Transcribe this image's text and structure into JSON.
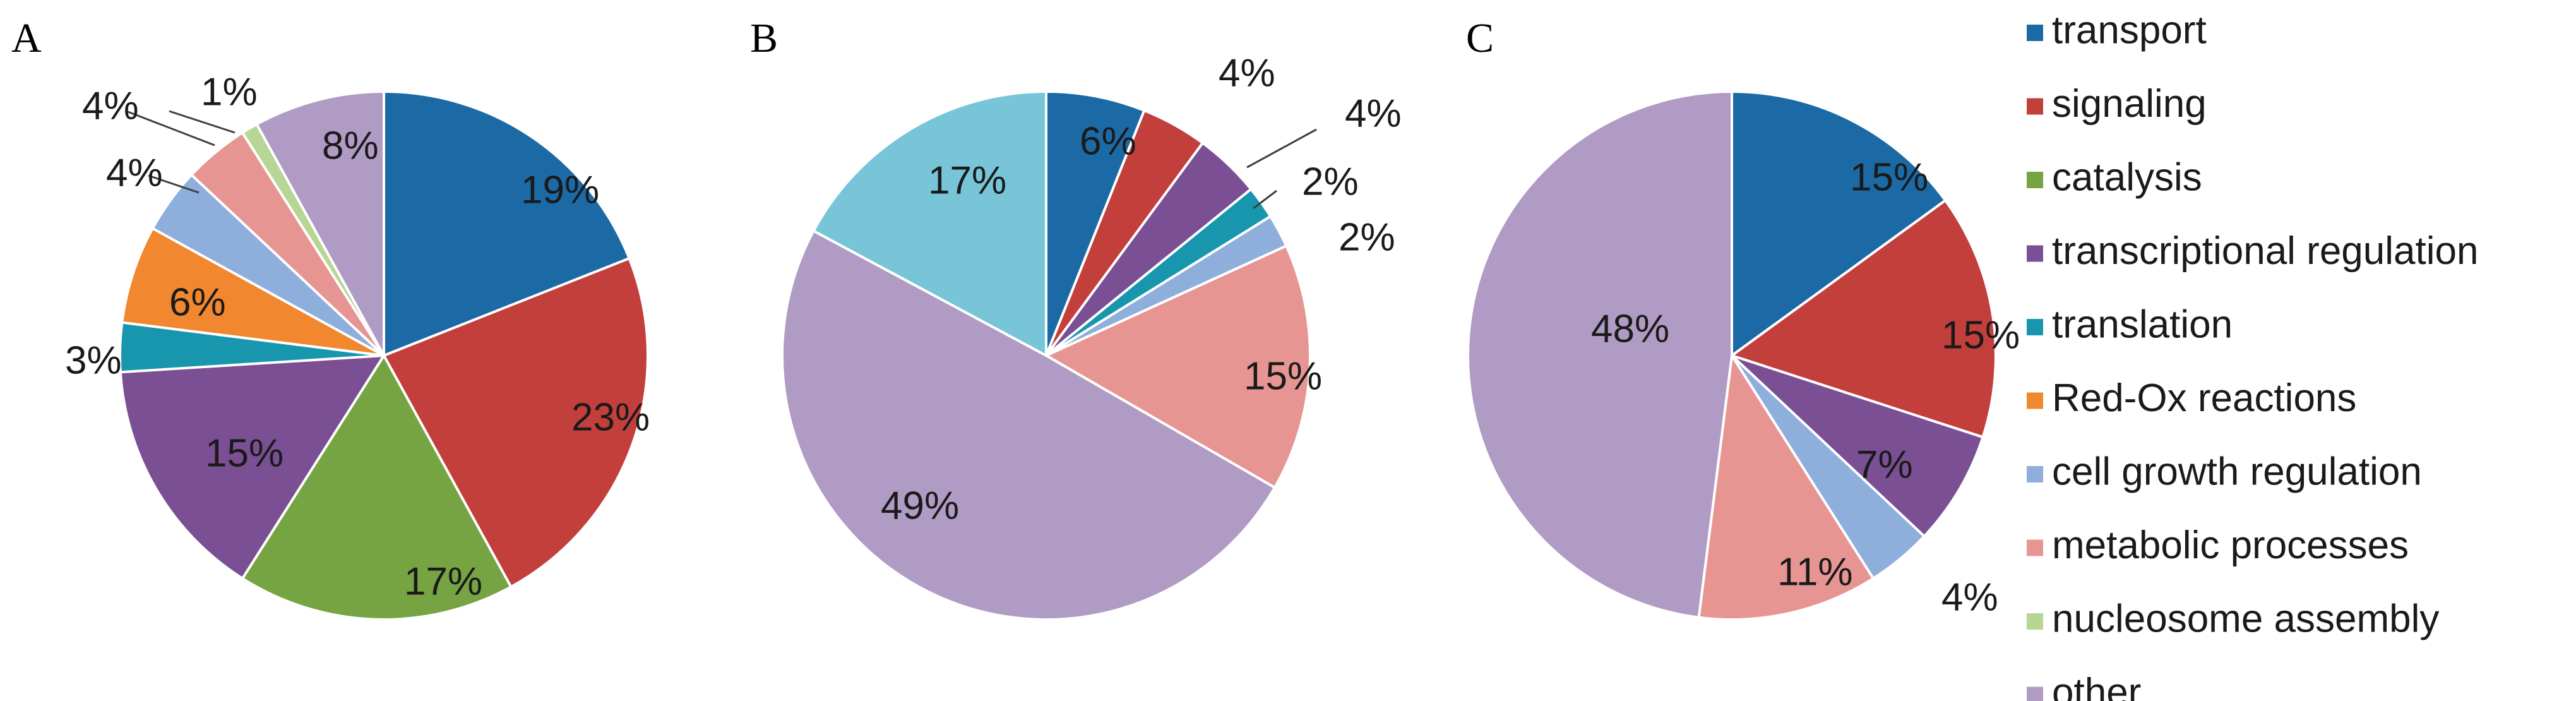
{
  "categories": [
    {
      "key": "transport",
      "label": "transport",
      "color": "#1b6aa5"
    },
    {
      "key": "signaling",
      "label": "signaling",
      "color": "#c23f3c"
    },
    {
      "key": "catalysis",
      "label": "catalysis",
      "color": "#76a443"
    },
    {
      "key": "transcriptional_regulation",
      "label": "transcriptional regulation",
      "color": "#7a4f93"
    },
    {
      "key": "translation",
      "label": "translation",
      "color": "#1796ad"
    },
    {
      "key": "redox",
      "label": "Red-Ox reactions",
      "color": "#f1872e"
    },
    {
      "key": "cell_growth",
      "label": "cell growth regulation",
      "color": "#8eaedb"
    },
    {
      "key": "metabolic",
      "label": "metabolic processes",
      "color": "#e79593"
    },
    {
      "key": "nucleosome",
      "label": "nucleosome assembly",
      "color": "#b7d695"
    },
    {
      "key": "other",
      "label": "other",
      "color": "#b09bc4"
    },
    {
      "key": "other_b",
      "label": "",
      "color": "#78c5d8"
    }
  ],
  "chart_data": [
    {
      "type": "pie",
      "panel": "A",
      "slices": [
        {
          "category": "transport",
          "value": 19,
          "label": "19%"
        },
        {
          "category": "signaling",
          "value": 23,
          "label": "23%"
        },
        {
          "category": "catalysis",
          "value": 17,
          "label": "17%"
        },
        {
          "category": "transcriptional_regulation",
          "value": 15,
          "label": "15%"
        },
        {
          "category": "translation",
          "value": 3,
          "label": "3%"
        },
        {
          "category": "redox",
          "value": 6,
          "label": "6%"
        },
        {
          "category": "cell_growth",
          "value": 4,
          "label": "4%"
        },
        {
          "category": "metabolic",
          "value": 4,
          "label": "4%"
        },
        {
          "category": "nucleosome",
          "value": 1,
          "label": "1%"
        },
        {
          "category": "other",
          "value": 8,
          "label": "8%"
        }
      ]
    },
    {
      "type": "pie",
      "panel": "B",
      "slices": [
        {
          "category": "transport",
          "value": 6,
          "label": "6%"
        },
        {
          "category": "signaling",
          "value": 4,
          "label": "4%"
        },
        {
          "category": "transcriptional_regulation",
          "value": 4,
          "label": "4%"
        },
        {
          "category": "translation",
          "value": 2,
          "label": "2%"
        },
        {
          "category": "cell_growth",
          "value": 2,
          "label": "2%"
        },
        {
          "category": "metabolic",
          "value": 15,
          "label": "15%"
        },
        {
          "category": "other",
          "value": 49,
          "label": "49%"
        },
        {
          "category": "other_b",
          "value": 17,
          "label": "17%"
        }
      ]
    },
    {
      "type": "pie",
      "panel": "C",
      "slices": [
        {
          "category": "transport",
          "value": 15,
          "label": "15%"
        },
        {
          "category": "signaling",
          "value": 15,
          "label": "15%"
        },
        {
          "category": "transcriptional_regulation",
          "value": 7,
          "label": "7%"
        },
        {
          "category": "cell_growth",
          "value": 4,
          "label": "4%"
        },
        {
          "category": "metabolic",
          "value": 11,
          "label": "11%"
        },
        {
          "category": "other",
          "value": 48,
          "label": "48%"
        }
      ]
    }
  ],
  "legend": {
    "placement": "right",
    "items": [
      "transport",
      "signaling",
      "catalysis",
      "transcriptional_regulation",
      "translation",
      "redox",
      "cell_growth",
      "metabolic",
      "nucleosome",
      "other"
    ]
  }
}
